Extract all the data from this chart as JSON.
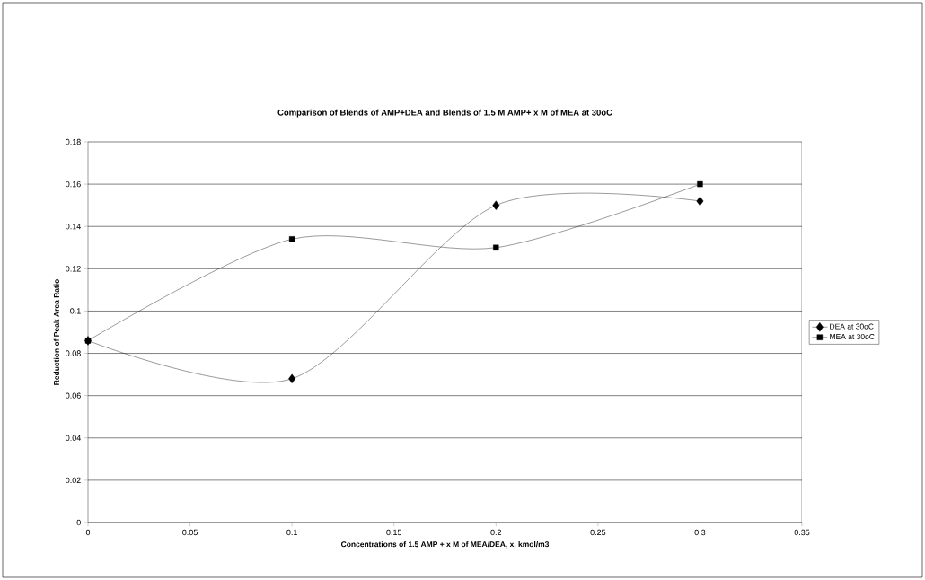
{
  "chart_data": {
    "type": "line",
    "title": "Comparison of Blends of AMP+DEA and Blends of 1.5 M AMP+ x M of MEA at 30oC",
    "xlabel": "Concentrations of 1.5 AMP + x M of MEA/DEA, x, kmol/m3",
    "ylabel": "Reduction of Peak Area Ratio",
    "x": [
      0,
      0.1,
      0.2,
      0.3
    ],
    "series": [
      {
        "name": "DEA at 30oC",
        "color": "#000000",
        "marker": "diamond",
        "values": [
          0.086,
          0.068,
          0.15,
          0.152
        ]
      },
      {
        "name": "MEA at 30oC",
        "color": "#000000",
        "marker": "square",
        "values": [
          0.086,
          0.134,
          0.13,
          0.16
        ]
      }
    ],
    "xlim": [
      0,
      0.35
    ],
    "xticks": [
      0,
      0.05,
      0.1,
      0.15,
      0.2,
      0.25,
      0.3,
      0.35
    ],
    "ylim": [
      0,
      0.18
    ],
    "yticks": [
      0,
      0.02,
      0.04,
      0.06,
      0.08,
      0.1,
      0.12,
      0.14,
      0.16,
      0.18
    ],
    "grid": "y",
    "legend": "right"
  }
}
